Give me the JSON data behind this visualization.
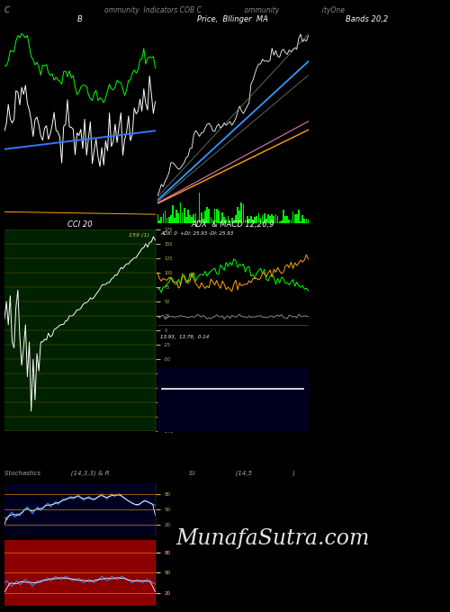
{
  "title_c": "C",
  "title_top": "ommunity  Indicators COB C                    ommunity                    ityOne",
  "bg_color": "#000000",
  "panel1_bg": "#00001e",
  "panel2_bg": "#002200",
  "panel3_bg": "#002200",
  "panel4_bg": "#00001e",
  "panel_red_bg": "#8B0000",
  "panel_label1": "B",
  "panel_label2": "Price,  Bllinger  MA",
  "panel_label3": "Bands 20,2",
  "panel_label4": "CCI 20",
  "panel_label5": "ADX  & MACD 12,26,9",
  "panel_label6": "Stochastics               (14,3,3) & R",
  "panel_label7": "SI                    (14,5                    )",
  "watermark": "MunafaSutra.com",
  "adx_label": "ADX: 0  +DI: 25.93 -DI: 25.93",
  "macd_label": "13.93,  13.79,  0.14",
  "cci_value": "159 (1)"
}
